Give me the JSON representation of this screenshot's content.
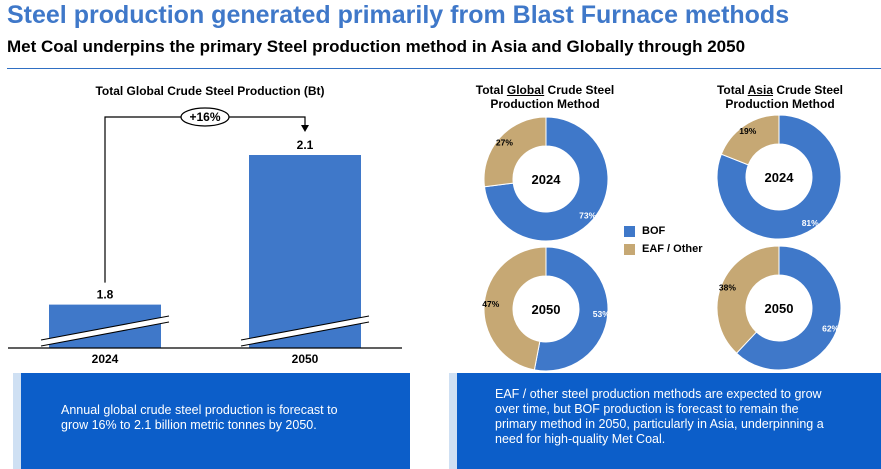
{
  "header": {
    "title": "Steel production generated primarily from Blast Furnace methods",
    "subtitle": "Met Coal underpins the primary Steel production method in Asia and Globally through 2050"
  },
  "colors": {
    "accent": "#3f78c9",
    "bof": "#3f78c9",
    "eaf": "#c6a874",
    "panel": "#0c5ec9"
  },
  "chart_data": [
    {
      "type": "bar",
      "title": "Total Global Crude Steel Production (Bt)",
      "categories": [
        "2024",
        "2050"
      ],
      "values": [
        1.8,
        2.1
      ],
      "value_labels": [
        "1.8",
        "2.1"
      ],
      "growth_label": "+16%",
      "axis_break": true
    },
    {
      "type": "pie",
      "title_parts": [
        "Total ",
        "Global",
        " Crude Steel",
        "Production Method"
      ],
      "center_label": "2024",
      "slices": [
        {
          "name": "BOF",
          "value": 73,
          "label": "73%"
        },
        {
          "name": "EAF / Other",
          "value": 27,
          "label": "27%"
        }
      ]
    },
    {
      "type": "pie",
      "center_label": "2050",
      "slices": [
        {
          "name": "BOF",
          "value": 53,
          "label": "53%"
        },
        {
          "name": "EAF / Other",
          "value": 47,
          "label": "47%"
        }
      ]
    },
    {
      "type": "pie",
      "title_parts": [
        "Total ",
        "Asia",
        " Crude Steel",
        "Production Method"
      ],
      "center_label": "2024",
      "slices": [
        {
          "name": "BOF",
          "value": 81,
          "label": "81%"
        },
        {
          "name": "EAF / Other",
          "value": 19,
          "label": "19%"
        }
      ]
    },
    {
      "type": "pie",
      "center_label": "2050",
      "slices": [
        {
          "name": "BOF",
          "value": 62,
          "label": "62%"
        },
        {
          "name": "EAF / Other",
          "value": 38,
          "label": "38%"
        }
      ]
    }
  ],
  "legend": [
    {
      "name": "BOF"
    },
    {
      "name": "EAF / Other"
    }
  ],
  "panels": {
    "left": "Annual global crude steel production is forecast to grow 16% to 2.1 billion metric tonnes by 2050.",
    "right": "EAF / other steel production methods are expected to grow over time, but BOF production is forecast to remain the primary method in 2050, particularly in Asia, underpinning a need for high-quality Met Coal."
  }
}
